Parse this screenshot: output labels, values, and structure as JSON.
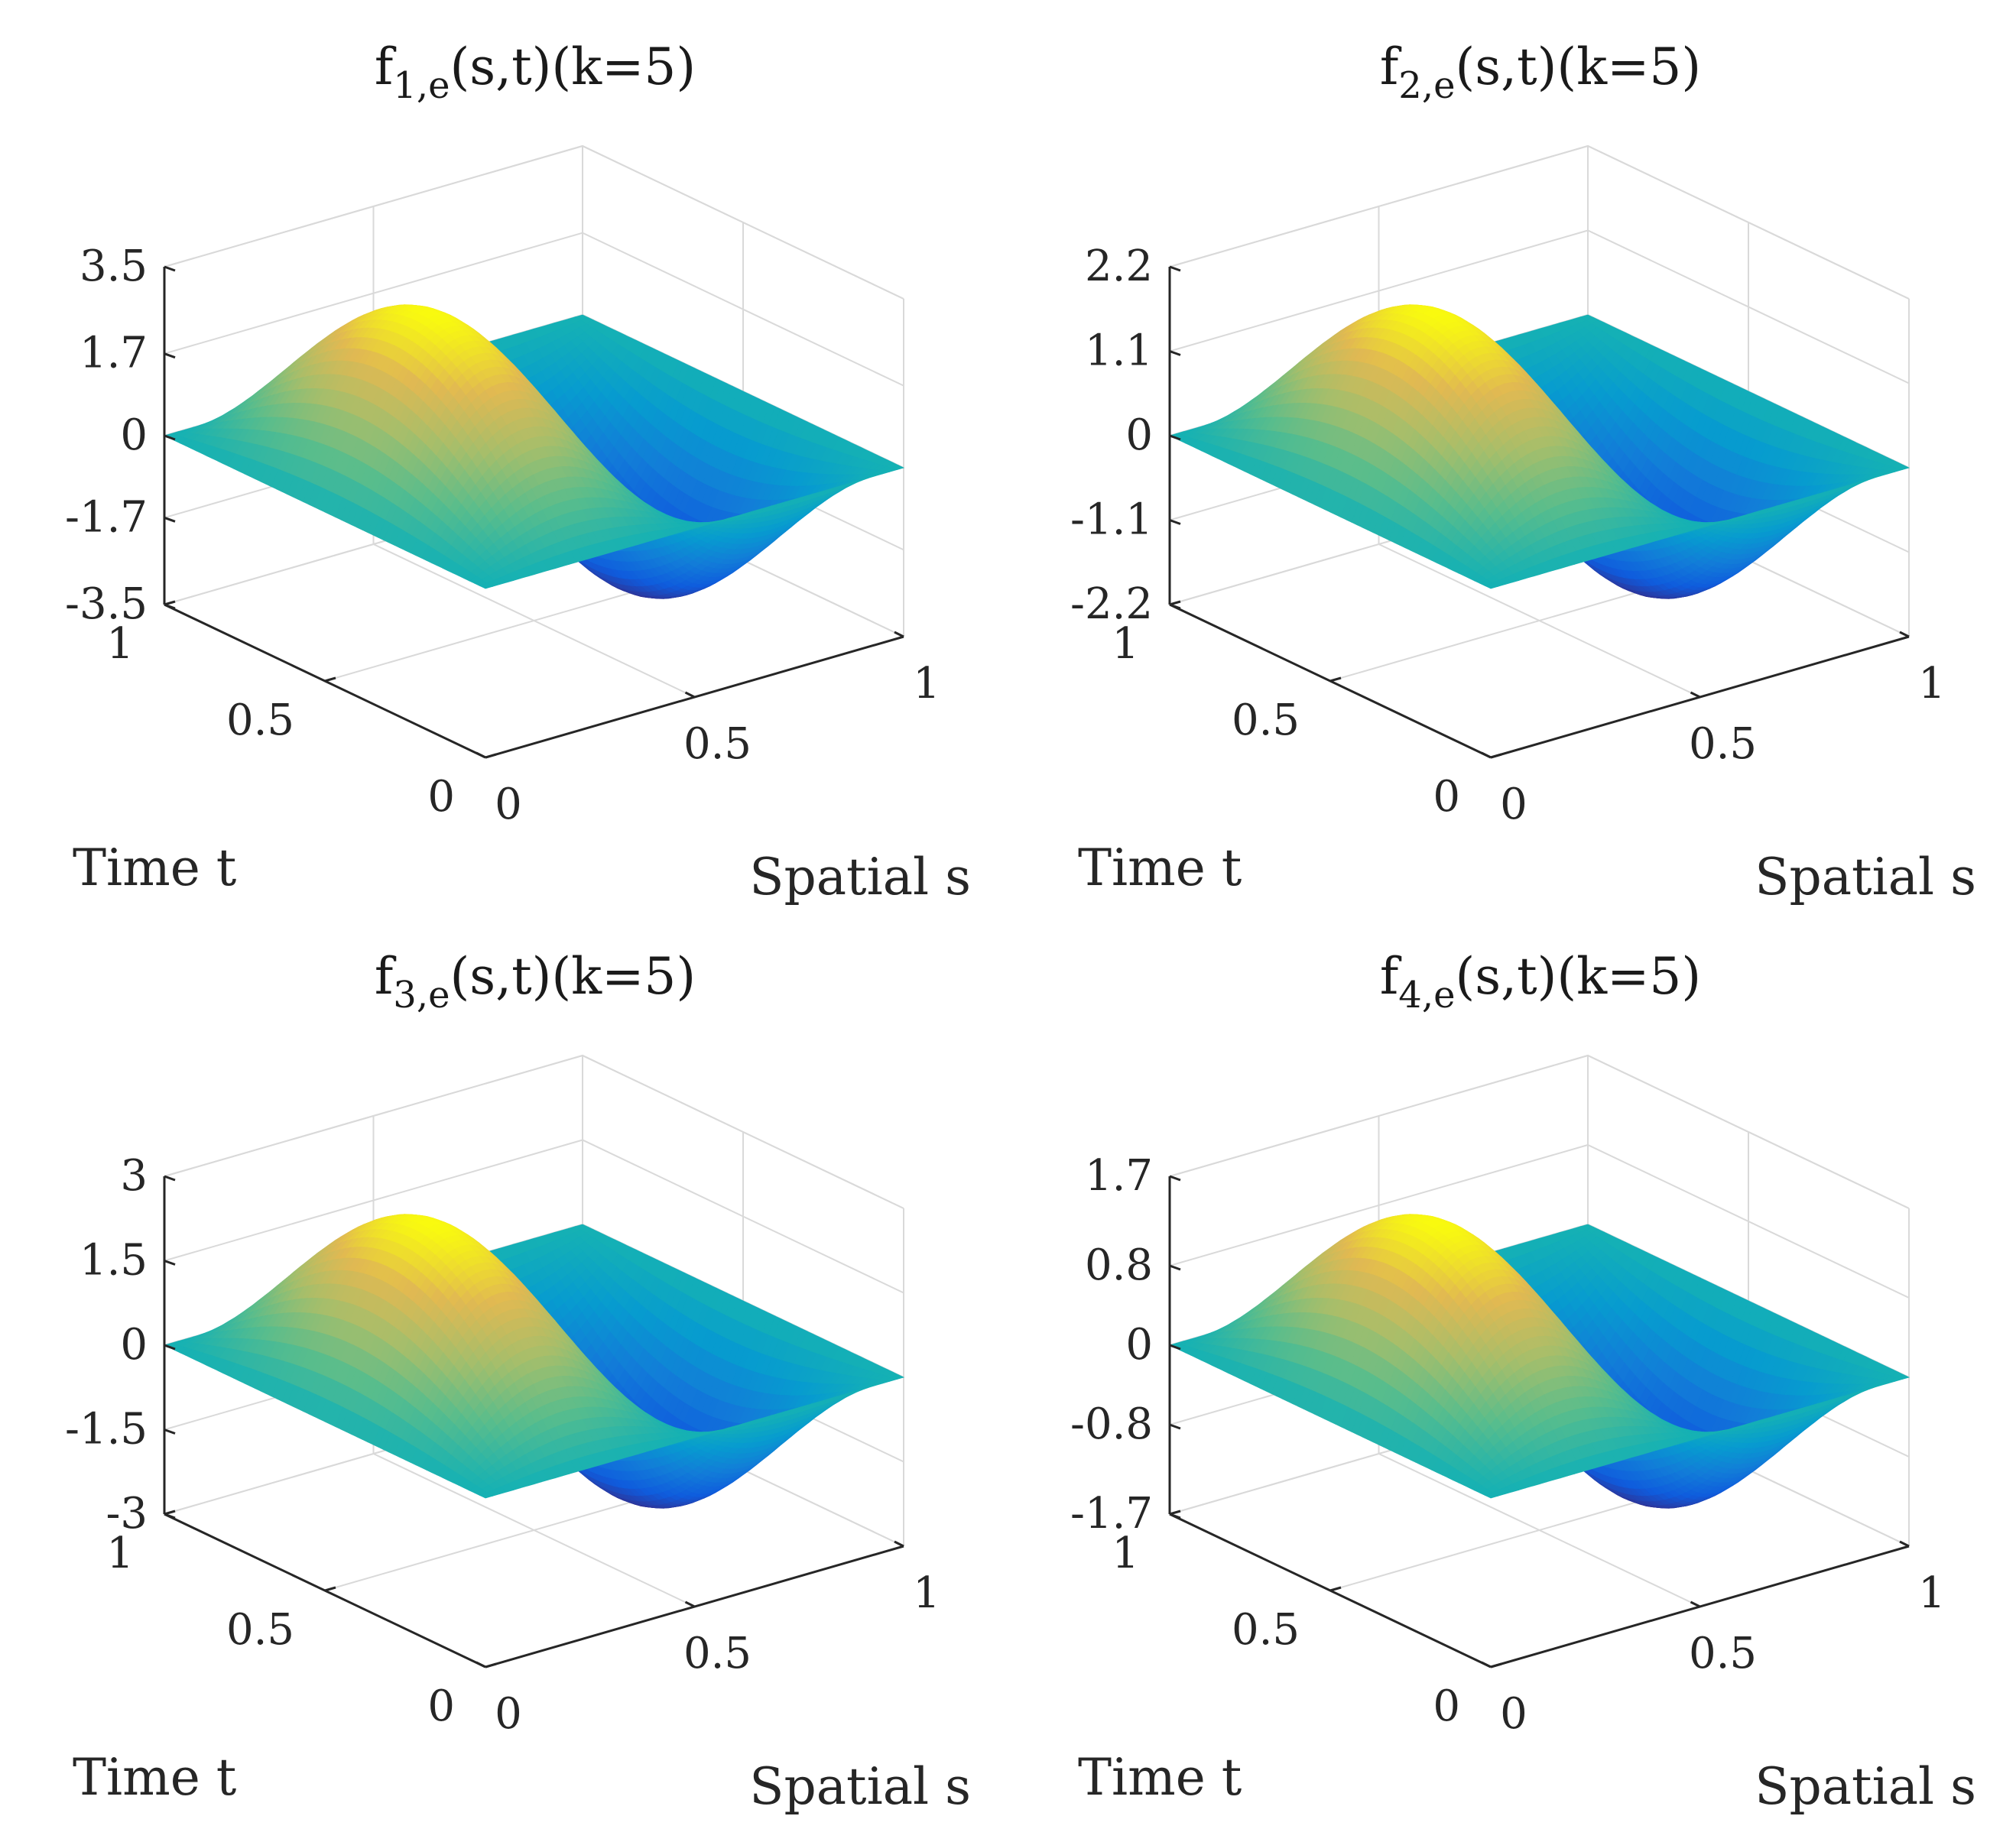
{
  "chart_data": [
    {
      "type": "surface",
      "title_main": "f",
      "title_sub": "1,e",
      "title_rest": "(s,t)(k=5)",
      "xlabel": "Spatial s",
      "ylabel": "Time t",
      "x_ticks": [
        "0",
        "0.5",
        "1"
      ],
      "y_ticks": [
        "0",
        "0.5",
        "1"
      ],
      "z_ticks": [
        "-3.5",
        "-1.7",
        "0",
        "1.7",
        "3.5"
      ],
      "z_tick_values": [
        -3.5,
        -1.7,
        0,
        1.7,
        3.5
      ],
      "xlim": [
        0,
        1
      ],
      "ylim": [
        0,
        1
      ],
      "zlim": [
        -3.5,
        3.5
      ],
      "amplitude": 3.5,
      "colormap": "parula"
    },
    {
      "type": "surface",
      "title_main": "f",
      "title_sub": "2,e",
      "title_rest": "(s,t)(k=5)",
      "xlabel": "Spatial s",
      "ylabel": "Time t",
      "x_ticks": [
        "0",
        "0.5",
        "1"
      ],
      "y_ticks": [
        "0",
        "0.5",
        "1"
      ],
      "z_ticks": [
        "-2.2",
        "-1.1",
        "0",
        "1.1",
        "2.2"
      ],
      "z_tick_values": [
        -2.2,
        -1.1,
        0,
        1.1,
        2.2
      ],
      "xlim": [
        0,
        1
      ],
      "ylim": [
        0,
        1
      ],
      "zlim": [
        -2.2,
        2.2
      ],
      "amplitude": 2.2,
      "colormap": "parula"
    },
    {
      "type": "surface",
      "title_main": "f",
      "title_sub": "3,e",
      "title_rest": "(s,t)(k=5)",
      "xlabel": "Spatial s",
      "ylabel": "Time t",
      "x_ticks": [
        "0",
        "0.5",
        "1"
      ],
      "y_ticks": [
        "0",
        "0.5",
        "1"
      ],
      "z_ticks": [
        "-3",
        "-1.5",
        "0",
        "1.5",
        "3"
      ],
      "z_tick_values": [
        -3,
        -1.5,
        0,
        1.5,
        3
      ],
      "xlim": [
        0,
        1
      ],
      "ylim": [
        0,
        1
      ],
      "zlim": [
        -3,
        3
      ],
      "amplitude": 3,
      "colormap": "parula"
    },
    {
      "type": "surface",
      "title_main": "f",
      "title_sub": "4,e",
      "title_rest": "(s,t)(k=5)",
      "xlabel": "Spatial s",
      "ylabel": "Time t",
      "x_ticks": [
        "0",
        "0.5",
        "1"
      ],
      "y_ticks": [
        "0",
        "0.5",
        "1"
      ],
      "z_ticks": [
        "-1.7",
        "-0.8",
        "0",
        "0.8",
        "1.7"
      ],
      "z_tick_values": [
        -1.7,
        -0.8,
        0,
        0.8,
        1.7
      ],
      "xlim": [
        0,
        1
      ],
      "ylim": [
        0,
        1
      ],
      "zlim": [
        -1.7,
        1.7
      ],
      "amplitude": 1.7,
      "colormap": "parula"
    }
  ]
}
